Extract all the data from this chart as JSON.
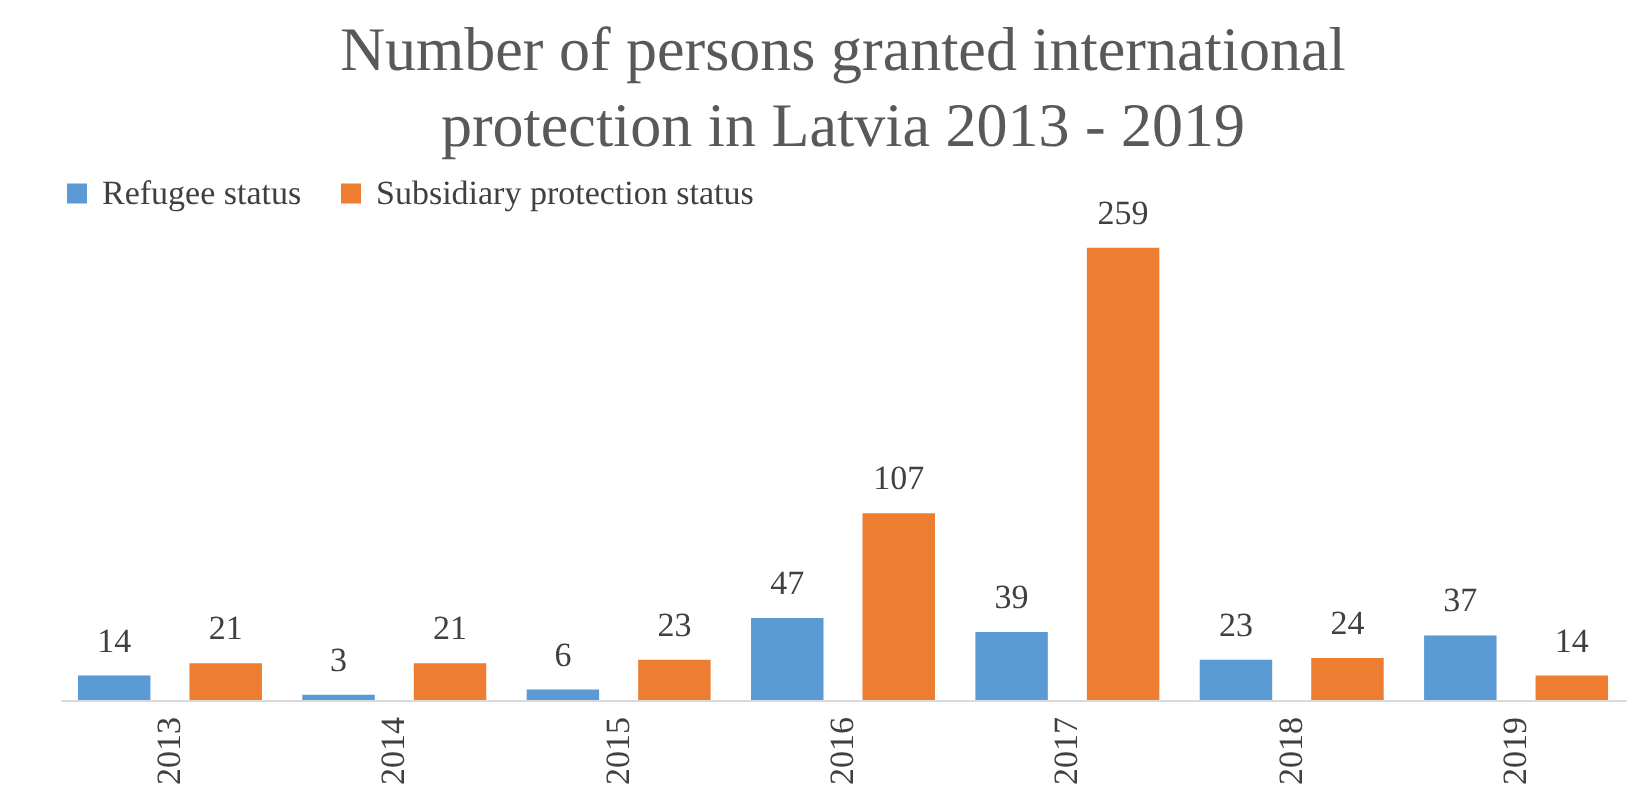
{
  "chart_data": {
    "type": "bar",
    "title": "Number of persons granted international protection in Latvia 2013 - 2019",
    "categories": [
      "2013",
      "2014",
      "2015",
      "2016",
      "2017",
      "2018",
      "2019"
    ],
    "series": [
      {
        "name": "Refugee status",
        "color": "#5b9bd5",
        "values": [
          14,
          3,
          6,
          47,
          39,
          23,
          37
        ]
      },
      {
        "name": "Subsidiary protection status",
        "color": "#ed7d31",
        "values": [
          21,
          21,
          23,
          107,
          259,
          24,
          14
        ]
      }
    ],
    "data_labels": true,
    "legend": "top"
  }
}
